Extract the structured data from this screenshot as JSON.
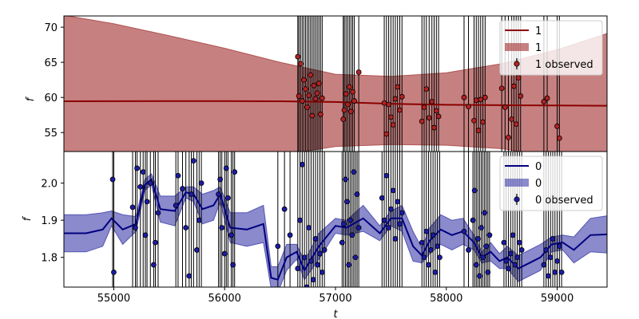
{
  "chart_data": {
    "type": "line",
    "xlabel": "t",
    "xlim": [
      54550,
      59450
    ],
    "x_ticks": [
      55000,
      56000,
      57000,
      58000,
      59000
    ],
    "x_tick_labels": [
      "55000",
      "56000",
      "57000",
      "58000",
      "59000"
    ],
    "panels": [
      {
        "id": "top",
        "ylabel": "f",
        "ylim": [
          52.3,
          71.6
        ],
        "y_ticks": [
          55,
          60,
          65,
          70
        ],
        "y_tick_labels": [
          "55",
          "60",
          "65",
          "70"
        ],
        "line_color": "#8b0000",
        "band_color": "#a83c3c",
        "band_opacity": 0.65,
        "point_color": "#b22222",
        "legend": {
          "placement": "top-right",
          "entries": [
            "1",
            "1",
            "1 observed"
          ]
        },
        "model_x": [
          54550,
          55000,
          55500,
          56000,
          56500,
          57000,
          57500,
          58000,
          58500,
          59000,
          59450
        ],
        "model_mean": [
          59.45,
          59.46,
          59.47,
          59.48,
          59.45,
          59.35,
          59.1,
          58.95,
          58.9,
          58.85,
          58.82
        ],
        "model_upper": [
          71.7,
          70.5,
          68.8,
          67.0,
          65.0,
          63.3,
          63.0,
          63.5,
          64.8,
          66.8,
          69.1
        ],
        "model_lower": [
          45.0,
          46.0,
          47.5,
          49.5,
          51.8,
          53.0,
          53.3,
          53.2,
          52.7,
          51.5,
          49.5
        ],
        "observed": [
          {
            "x": 56660,
            "y": 65.8
          },
          {
            "x": 56670,
            "y": 60.2
          },
          {
            "x": 56685,
            "y": 64.8
          },
          {
            "x": 56700,
            "y": 59.5
          },
          {
            "x": 56715,
            "y": 62.5
          },
          {
            "x": 56730,
            "y": 61.2
          },
          {
            "x": 56745,
            "y": 58.6
          },
          {
            "x": 56760,
            "y": 60.3
          },
          {
            "x": 56775,
            "y": 63.2
          },
          {
            "x": 56790,
            "y": 57.4
          },
          {
            "x": 56805,
            "y": 61.7
          },
          {
            "x": 56820,
            "y": 59.8
          },
          {
            "x": 56835,
            "y": 60.6
          },
          {
            "x": 56850,
            "y": 62.0
          },
          {
            "x": 56865,
            "y": 57.6
          },
          {
            "x": 56880,
            "y": 59.9
          },
          {
            "x": 57070,
            "y": 56.9
          },
          {
            "x": 57080,
            "y": 58.2
          },
          {
            "x": 57095,
            "y": 60.5
          },
          {
            "x": 57110,
            "y": 59.0
          },
          {
            "x": 57125,
            "y": 61.5
          },
          {
            "x": 57140,
            "y": 58.0
          },
          {
            "x": 57155,
            "y": 60.8
          },
          {
            "x": 57170,
            "y": 59.5
          },
          {
            "x": 57210,
            "y": 63.6
          },
          {
            "x": 57440,
            "y": 59.2
          },
          {
            "x": 57460,
            "y": 54.8
          },
          {
            "x": 57480,
            "y": 59.0
          },
          {
            "x": 57500,
            "y": 57.2
          },
          {
            "x": 57520,
            "y": 56.1
          },
          {
            "x": 57540,
            "y": 59.8
          },
          {
            "x": 57560,
            "y": 61.5
          },
          {
            "x": 57580,
            "y": 58.2
          },
          {
            "x": 57600,
            "y": 60.1
          },
          {
            "x": 57780,
            "y": 56.6
          },
          {
            "x": 57800,
            "y": 58.6
          },
          {
            "x": 57820,
            "y": 61.2
          },
          {
            "x": 57845,
            "y": 57.1
          },
          {
            "x": 57870,
            "y": 59.4
          },
          {
            "x": 57890,
            "y": 55.7
          },
          {
            "x": 57910,
            "y": 58.1
          },
          {
            "x": 57930,
            "y": 57.3
          },
          {
            "x": 58160,
            "y": 60.0
          },
          {
            "x": 58200,
            "y": 58.7
          },
          {
            "x": 58250,
            "y": 56.7
          },
          {
            "x": 58270,
            "y": 59.6
          },
          {
            "x": 58290,
            "y": 55.3
          },
          {
            "x": 58310,
            "y": 59.7
          },
          {
            "x": 58330,
            "y": 56.5
          },
          {
            "x": 58350,
            "y": 60.0
          },
          {
            "x": 58500,
            "y": 61.3
          },
          {
            "x": 58530,
            "y": 58.6
          },
          {
            "x": 58560,
            "y": 54.3
          },
          {
            "x": 58590,
            "y": 56.9
          },
          {
            "x": 58610,
            "y": 61.6
          },
          {
            "x": 58630,
            "y": 56.2
          },
          {
            "x": 58650,
            "y": 62.8
          },
          {
            "x": 58670,
            "y": 60.2
          },
          {
            "x": 58880,
            "y": 59.4
          },
          {
            "x": 58910,
            "y": 59.9
          },
          {
            "x": 59000,
            "y": 55.9
          },
          {
            "x": 59020,
            "y": 54.2
          }
        ]
      },
      {
        "id": "bottom",
        "ylabel": "f",
        "ylim": [
          1.72,
          2.085
        ],
        "y_ticks": [
          1.8,
          1.9,
          2.0
        ],
        "y_tick_labels": [
          "1.8",
          "1.9",
          "2.0"
        ],
        "line_color": "#00007f",
        "band_color": "#3c3caa",
        "band_opacity": 0.6,
        "point_color": "#1a1aa6",
        "legend": {
          "placement": "top-right",
          "entries": [
            "0",
            "0",
            "0 observed"
          ]
        },
        "model_x": [
          54550,
          54750,
          54900,
          54980,
          55080,
          55200,
          55280,
          55340,
          55420,
          55550,
          55650,
          55720,
          55800,
          55900,
          55960,
          56050,
          56200,
          56350,
          56420,
          56480,
          56560,
          56650,
          56720,
          56850,
          57000,
          57100,
          57250,
          57400,
          57500,
          57600,
          57700,
          57780,
          57850,
          57950,
          58050,
          58150,
          58250,
          58320,
          58400,
          58480,
          58550,
          58650,
          58750,
          58850,
          58950,
          59050,
          59150,
          59300,
          59450
        ],
        "model_mean": [
          1.865,
          1.865,
          1.875,
          1.905,
          1.875,
          1.89,
          1.995,
          2.01,
          1.93,
          1.925,
          1.975,
          1.97,
          1.93,
          1.94,
          1.97,
          1.88,
          1.875,
          1.89,
          1.745,
          1.74,
          1.8,
          1.815,
          1.765,
          1.83,
          1.885,
          1.88,
          1.905,
          1.865,
          1.905,
          1.905,
          1.83,
          1.805,
          1.845,
          1.875,
          1.86,
          1.87,
          1.84,
          1.8,
          1.815,
          1.79,
          1.8,
          1.77,
          1.785,
          1.8,
          1.835,
          1.84,
          1.82,
          1.86,
          1.862
        ],
        "model_halfwidth": [
          0.05,
          0.05,
          0.045,
          0.02,
          0.04,
          0.02,
          0.015,
          0.015,
          0.035,
          0.04,
          0.015,
          0.02,
          0.04,
          0.04,
          0.02,
          0.04,
          0.045,
          0.05,
          0.03,
          0.035,
          0.035,
          0.02,
          0.025,
          0.035,
          0.02,
          0.02,
          0.035,
          0.02,
          0.02,
          0.035,
          0.04,
          0.02,
          0.035,
          0.04,
          0.04,
          0.035,
          0.02,
          0.015,
          0.025,
          0.02,
          0.03,
          0.035,
          0.035,
          0.035,
          0.02,
          0.02,
          0.035,
          0.045,
          0.05
        ],
        "observed": [
          {
            "x": 54990,
            "y": 2.01
          },
          {
            "x": 55000,
            "y": 1.76
          },
          {
            "x": 55170,
            "y": 1.935
          },
          {
            "x": 55195,
            "y": 1.88
          },
          {
            "x": 55210,
            "y": 2.04
          },
          {
            "x": 55240,
            "y": 1.99
          },
          {
            "x": 55265,
            "y": 2.03
          },
          {
            "x": 55285,
            "y": 1.86
          },
          {
            "x": 55300,
            "y": 1.95
          },
          {
            "x": 55330,
            "y": 2.0
          },
          {
            "x": 55360,
            "y": 1.78
          },
          {
            "x": 55375,
            "y": 1.84
          },
          {
            "x": 55400,
            "y": 1.92
          },
          {
            "x": 55560,
            "y": 1.94
          },
          {
            "x": 55580,
            "y": 2.02
          },
          {
            "x": 55620,
            "y": 1.985
          },
          {
            "x": 55650,
            "y": 1.88
          },
          {
            "x": 55680,
            "y": 1.75
          },
          {
            "x": 55700,
            "y": 1.97
          },
          {
            "x": 55720,
            "y": 2.06
          },
          {
            "x": 55750,
            "y": 1.82
          },
          {
            "x": 55770,
            "y": 1.9
          },
          {
            "x": 55790,
            "y": 2.0
          },
          {
            "x": 55945,
            "y": 1.97
          },
          {
            "x": 55960,
            "y": 2.01
          },
          {
            "x": 55975,
            "y": 1.88
          },
          {
            "x": 56000,
            "y": 1.81
          },
          {
            "x": 56015,
            "y": 2.04
          },
          {
            "x": 56030,
            "y": 1.96
          },
          {
            "x": 56060,
            "y": 1.86
          },
          {
            "x": 56075,
            "y": 1.78
          },
          {
            "x": 56090,
            "y": 2.03
          },
          {
            "x": 56480,
            "y": 1.83
          },
          {
            "x": 56540,
            "y": 1.93
          },
          {
            "x": 56590,
            "y": 1.86
          },
          {
            "x": 56660,
            "y": 1.77
          },
          {
            "x": 56680,
            "y": 1.9
          },
          {
            "x": 56700,
            "y": 2.05
          },
          {
            "x": 56720,
            "y": 1.8
          },
          {
            "x": 56740,
            "y": 1.72
          },
          {
            "x": 56760,
            "y": 1.88
          },
          {
            "x": 56780,
            "y": 1.79
          },
          {
            "x": 56800,
            "y": 1.74
          },
          {
            "x": 56820,
            "y": 1.85
          },
          {
            "x": 56840,
            "y": 1.78
          },
          {
            "x": 56860,
            "y": 1.81
          },
          {
            "x": 56880,
            "y": 1.76
          },
          {
            "x": 56900,
            "y": 1.82
          },
          {
            "x": 57060,
            "y": 1.84
          },
          {
            "x": 57075,
            "y": 1.89
          },
          {
            "x": 57090,
            "y": 2.01
          },
          {
            "x": 57105,
            "y": 1.95
          },
          {
            "x": 57120,
            "y": 1.78
          },
          {
            "x": 57135,
            "y": 1.9
          },
          {
            "x": 57150,
            "y": 1.86
          },
          {
            "x": 57165,
            "y": 2.03
          },
          {
            "x": 57180,
            "y": 1.8
          },
          {
            "x": 57195,
            "y": 1.97
          },
          {
            "x": 57210,
            "y": 1.88
          },
          {
            "x": 57420,
            "y": 1.96
          },
          {
            "x": 57440,
            "y": 1.9
          },
          {
            "x": 57460,
            "y": 2.02
          },
          {
            "x": 57480,
            "y": 1.88
          },
          {
            "x": 57500,
            "y": 1.93
          },
          {
            "x": 57520,
            "y": 1.98
          },
          {
            "x": 57540,
            "y": 1.85
          },
          {
            "x": 57560,
            "y": 1.95
          },
          {
            "x": 57580,
            "y": 1.89
          },
          {
            "x": 57600,
            "y": 1.92
          },
          {
            "x": 57780,
            "y": 1.84
          },
          {
            "x": 57800,
            "y": 1.8
          },
          {
            "x": 57820,
            "y": 1.87
          },
          {
            "x": 57840,
            "y": 1.78
          },
          {
            "x": 57860,
            "y": 1.82
          },
          {
            "x": 57880,
            "y": 1.86
          },
          {
            "x": 57900,
            "y": 1.76
          },
          {
            "x": 57920,
            "y": 1.83
          },
          {
            "x": 57940,
            "y": 1.8
          },
          {
            "x": 58160,
            "y": 1.87
          },
          {
            "x": 58200,
            "y": 1.82
          },
          {
            "x": 58240,
            "y": 1.9
          },
          {
            "x": 58255,
            "y": 1.98
          },
          {
            "x": 58270,
            "y": 1.78
          },
          {
            "x": 58285,
            "y": 1.85
          },
          {
            "x": 58300,
            "y": 1.75
          },
          {
            "x": 58315,
            "y": 1.88
          },
          {
            "x": 58330,
            "y": 1.8
          },
          {
            "x": 58345,
            "y": 1.92
          },
          {
            "x": 58360,
            "y": 1.83
          },
          {
            "x": 58375,
            "y": 1.76
          },
          {
            "x": 58390,
            "y": 1.86
          },
          {
            "x": 58520,
            "y": 1.84
          },
          {
            "x": 58540,
            "y": 1.79
          },
          {
            "x": 58560,
            "y": 1.77
          },
          {
            "x": 58580,
            "y": 1.81
          },
          {
            "x": 58600,
            "y": 1.86
          },
          {
            "x": 58620,
            "y": 1.78
          },
          {
            "x": 58640,
            "y": 1.8
          },
          {
            "x": 58660,
            "y": 1.84
          },
          {
            "x": 58680,
            "y": 1.82
          },
          {
            "x": 58880,
            "y": 1.78
          },
          {
            "x": 58900,
            "y": 1.82
          },
          {
            "x": 58920,
            "y": 1.75
          },
          {
            "x": 58940,
            "y": 1.8
          },
          {
            "x": 58960,
            "y": 1.85
          },
          {
            "x": 58980,
            "y": 1.76
          },
          {
            "x": 59000,
            "y": 1.79
          },
          {
            "x": 59020,
            "y": 1.83
          },
          {
            "x": 59040,
            "y": 1.76
          }
        ]
      }
    ]
  }
}
